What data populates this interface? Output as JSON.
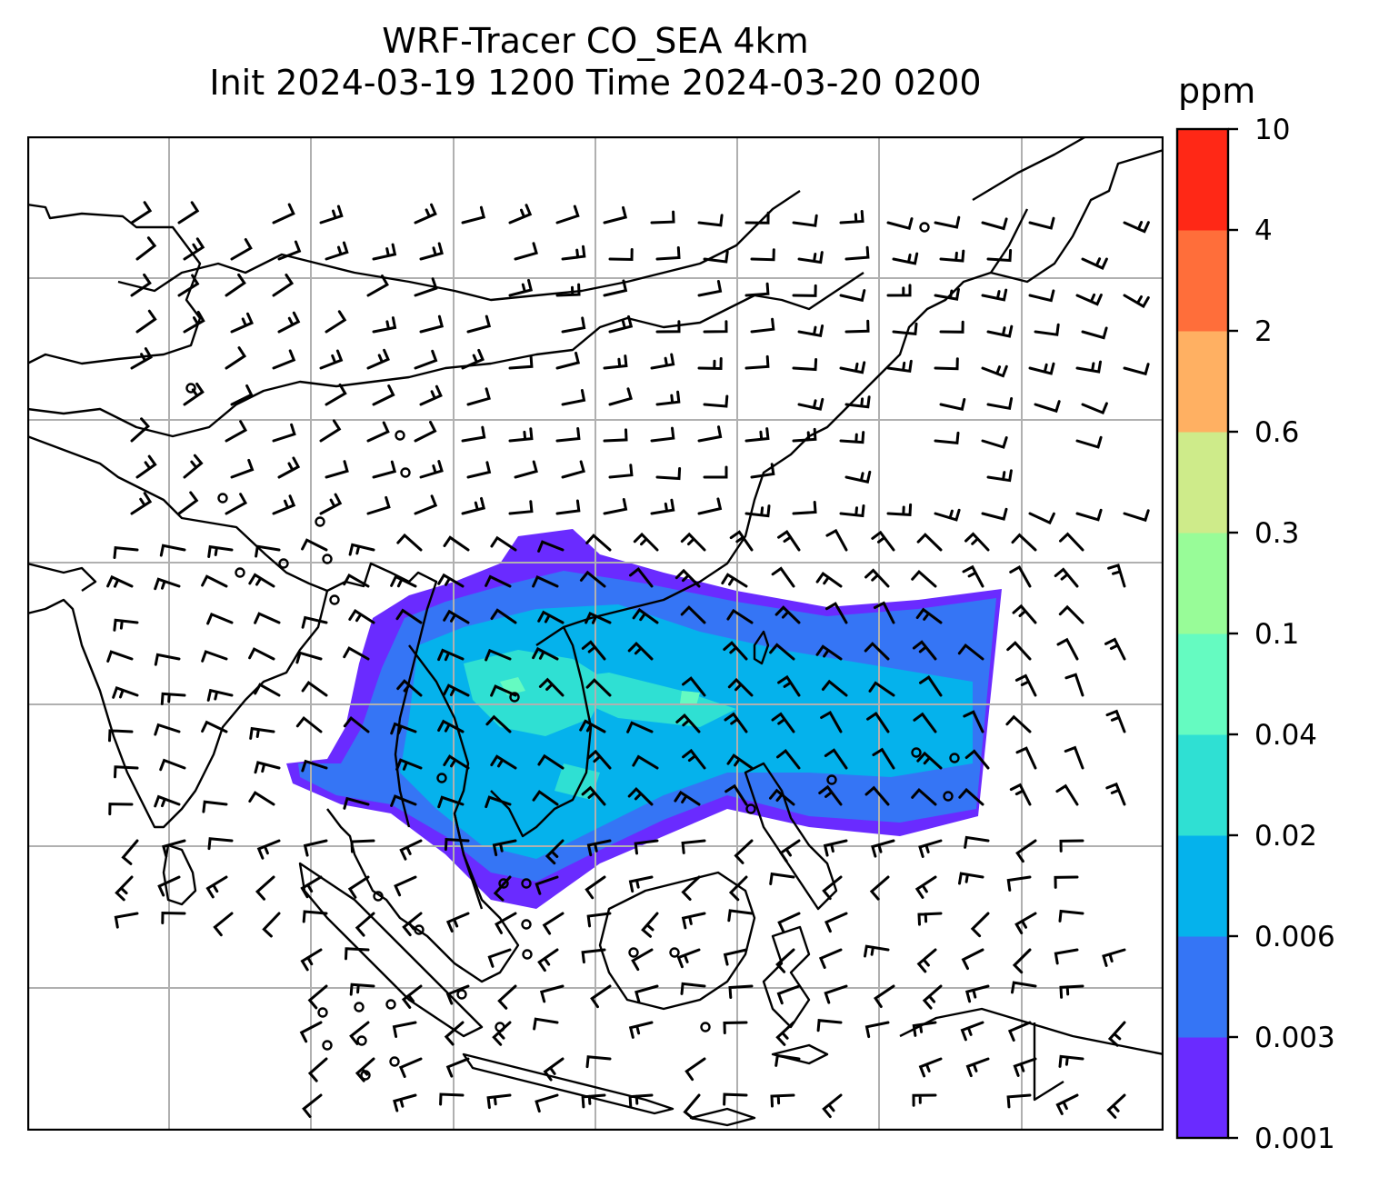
{
  "figure": {
    "title_line1": "WRF-Tracer CO_SEA 4km",
    "title_line2": "Init 2024-03-19 1200 Time 2024-03-20 0200"
  },
  "colorbar": {
    "unit_label": "ppm",
    "levels": [
      "0.001",
      "0.003",
      "0.006",
      "0.02",
      "0.04",
      "0.1",
      "0.3",
      "0.6",
      "2",
      "4",
      "10"
    ],
    "colors": [
      "#6a2bff",
      "#3575f5",
      "#05b2ec",
      "#2fe0d3",
      "#65fbc1",
      "#98fc98",
      "#ceeb8a",
      "#ffb062",
      "#ff6e3a",
      "#ff2816"
    ]
  },
  "map": {
    "gridlines": "on",
    "wind_barbs": "on",
    "coastlines": "on"
  }
}
